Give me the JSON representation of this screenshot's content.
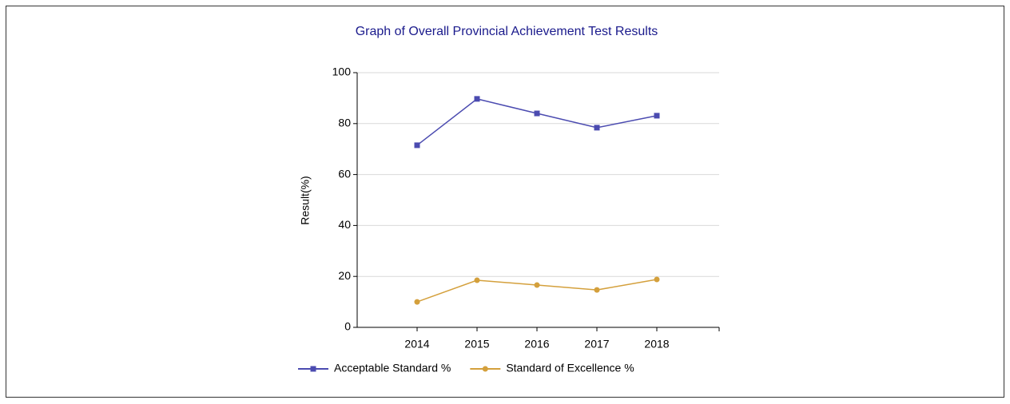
{
  "chart_data": {
    "type": "line",
    "title": "Graph of Overall Provincial Achievement Test Results",
    "y_label": "Result(%)",
    "categories": [
      "2014",
      "2015",
      "2016",
      "2017",
      "2018"
    ],
    "series": [
      {
        "name": "Acceptable Standard %",
        "color": "#4b4bb0",
        "marker": "square",
        "values": [
          71.5,
          89.7,
          84.0,
          78.4,
          83.1
        ]
      },
      {
        "name": "Standard of Excellence %",
        "color": "#d4a03c",
        "marker": "circle",
        "values": [
          10.0,
          18.5,
          16.6,
          14.7,
          18.8
        ]
      }
    ],
    "ylim": [
      0,
      100
    ],
    "yticks": [
      0,
      20,
      40,
      60,
      80,
      100
    ],
    "grid": true
  }
}
